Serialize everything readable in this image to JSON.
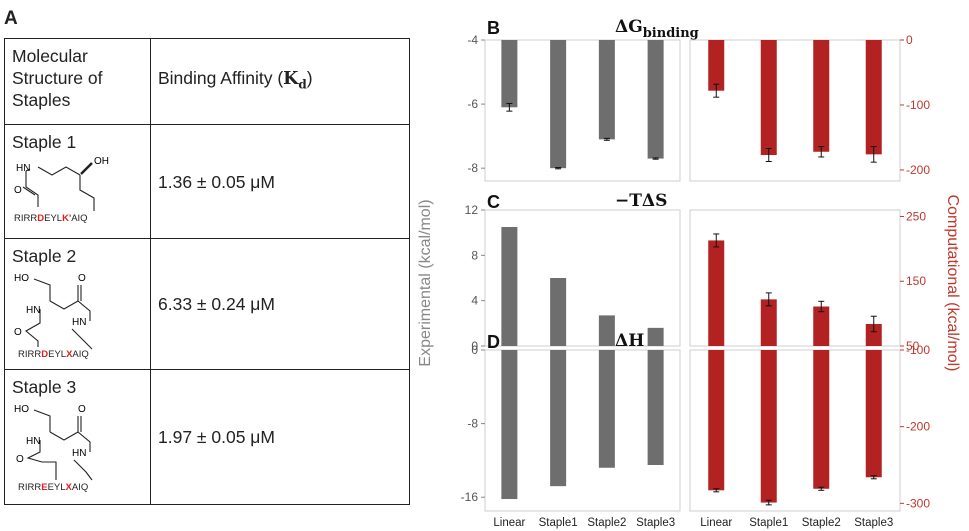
{
  "panel_a": {
    "letter": "A",
    "header": {
      "col1": "Molecular Structure of Staples",
      "col2_text": "Binding Affinity (",
      "col2_sym": "K",
      "col2_sub": "d",
      "col2_close": ")"
    },
    "rows": [
      {
        "name": "Staple 1",
        "affinity": "1.36 ± 0.05 μM",
        "labels": {
          "nh": "HN",
          "oh": "OH",
          "o": "O",
          "seq_pre": "RIRR",
          "seq_red1": "D",
          "seq_mid": "EYL",
          "seq_red2": "K'",
          "seq_post": "AIQ"
        }
      },
      {
        "name": "Staple 2",
        "affinity": "6.33 ± 0.24 μM",
        "labels": {
          "ho": "HO",
          "nh": "HN",
          "o": "O",
          "o2": "O",
          "hn2": "HN",
          "seq_pre": "RIRR",
          "seq_red1": "D",
          "seq_mid": "EYL",
          "seq_red2": "X",
          "seq_post": "AIQ"
        }
      },
      {
        "name": "Staple 3",
        "affinity": "1.97 ± 0.05 μM",
        "labels": {
          "ho": "HO",
          "nh": "HN",
          "o": "O",
          "o2": "O",
          "hn2": "HN",
          "seq_pre": "RIRR",
          "seq_red1": "E",
          "seq_mid": "EYL",
          "seq_red2": "X",
          "seq_post": "AIQ"
        }
      }
    ]
  },
  "colors": {
    "experimental": "#6e6e6e",
    "computational": "#b22222",
    "axis_right": "#c0392b",
    "axis_left": "#888888"
  },
  "axis_labels": {
    "left": "Experimental (kcal/mol)",
    "right": "Computational (kcal/mol)"
  },
  "chart_data": [
    {
      "panel": "B",
      "type": "bar",
      "title": "ΔG",
      "title_sub": "binding",
      "categories": [
        "Linear",
        "Staple1",
        "Staple2",
        "Staple3"
      ],
      "experimental": {
        "values": [
          -6.1,
          -8.0,
          -7.1,
          -7.7
        ],
        "errors": [
          0.12,
          0.02,
          0.03,
          0.02
        ],
        "ylim": [
          -8.4,
          -4
        ],
        "ticks": [
          -4,
          -6,
          -8
        ]
      },
      "computational": {
        "values": [
          -78,
          -177,
          -172,
          -176
        ],
        "errors": [
          10,
          10,
          8,
          12
        ],
        "ylim": [
          -217,
          0
        ],
        "ticks": [
          0,
          -100,
          -200
        ]
      }
    },
    {
      "panel": "C",
      "type": "bar",
      "title": "−TΔS",
      "categories": [
        "Linear",
        "Staple1",
        "Staple2",
        "Staple3"
      ],
      "experimental": {
        "values": [
          10.5,
          6.0,
          2.7,
          1.6
        ],
        "errors": [],
        "ylim": [
          0,
          12
        ],
        "ticks": [
          12,
          8,
          4,
          0
        ]
      },
      "computational": {
        "values": [
          213,
          122,
          111,
          84
        ],
        "errors": [
          10,
          10,
          8,
          12
        ],
        "ylim": [
          50,
          260
        ],
        "ticks": [
          250,
          150,
          50
        ]
      }
    },
    {
      "panel": "D",
      "type": "bar",
      "title": "ΔH",
      "categories": [
        "Linear",
        "Staple1",
        "Staple2",
        "Staple3"
      ],
      "experimental": {
        "values": [
          -16.2,
          -14.8,
          -12.8,
          -12.5
        ],
        "errors": [],
        "ylim": [
          -17.5,
          0
        ],
        "ticks": [
          0,
          -8,
          -16
        ]
      },
      "computational": {
        "values": [
          -283,
          -299,
          -281,
          -266
        ],
        "errors": [
          2,
          3,
          2,
          2
        ],
        "ylim": [
          -310,
          -100
        ],
        "ticks": [
          -100,
          -200,
          -300
        ]
      }
    }
  ]
}
